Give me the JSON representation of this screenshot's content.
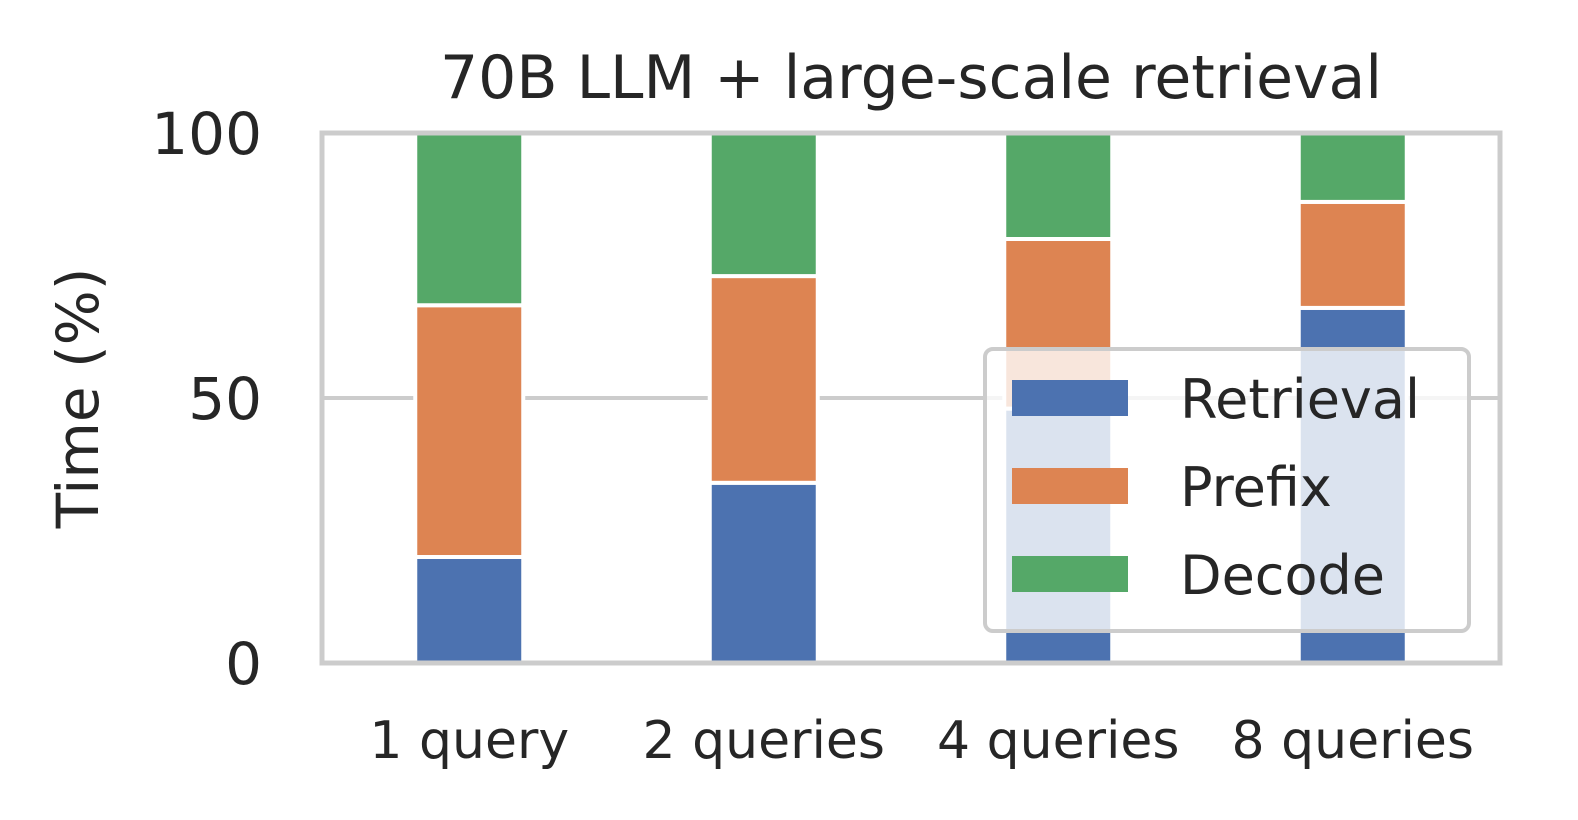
{
  "chart_data": {
    "type": "bar",
    "stacked": true,
    "title": "70B LLM + large-scale retrieval",
    "xlabel": "",
    "ylabel": "Time (%)",
    "ylim": [
      0,
      100
    ],
    "yticks": [
      0,
      50,
      100
    ],
    "categories": [
      "1 query",
      "2 queries",
      "4 queries",
      "8 queries"
    ],
    "series": [
      {
        "name": "Retrieval",
        "color": "#4c72b0",
        "values": [
          20,
          34,
          48,
          67
        ]
      },
      {
        "name": "Prefix",
        "color": "#dd8452",
        "values": [
          47.5,
          39,
          32,
          20
        ]
      },
      {
        "name": "Decode",
        "color": "#55a868",
        "values": [
          32.5,
          27,
          20,
          13
        ]
      }
    ],
    "grid": true,
    "legend_position": "lower-right"
  }
}
